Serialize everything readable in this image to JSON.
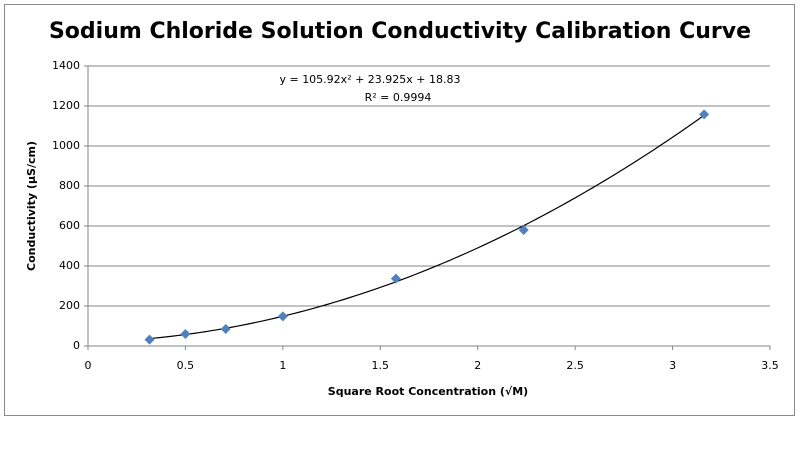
{
  "chart_data": {
    "type": "scatter",
    "title": "Sodium Chloride Solution Conductivity Calibration Curve",
    "x_label": "Square Root Concentration (√M)",
    "y_label": "Conductivity (µS/cm)",
    "x": [
      0.316,
      0.5,
      0.707,
      1.0,
      1.58,
      2.236,
      3.162
    ],
    "series": [
      {
        "name": "Conductivity",
        "color": "#4f81bd",
        "values": [
          32,
          60,
          85,
          148,
          337,
          580,
          1158
        ]
      }
    ],
    "trendline": {
      "type": "polynomial",
      "coefficients": [
        105.92,
        23.925,
        18.83
      ],
      "color": "#000000",
      "equation": "y = 105.92x² + 23.925x + 18.83",
      "r_squared": "R² = 0.9994"
    },
    "xlim": [
      0,
      3.5
    ],
    "xticks": [
      0,
      0.5,
      1,
      1.5,
      2,
      2.5,
      3,
      3.5
    ],
    "ylim": [
      0,
      1400
    ],
    "yticks": [
      0,
      200,
      400,
      600,
      800,
      1000,
      1200,
      1400
    ],
    "grid": true
  }
}
